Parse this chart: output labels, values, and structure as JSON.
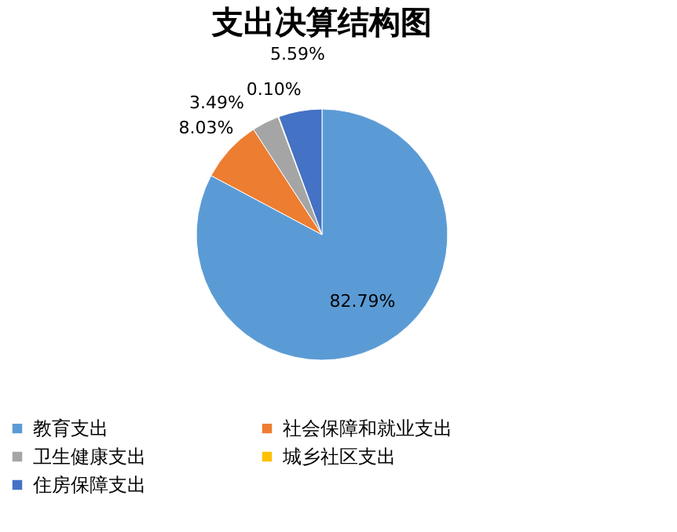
{
  "chart_data": {
    "type": "pie",
    "title": "支出决算结构图",
    "categories": [
      "教育支出",
      "社会保障和就业支出",
      "卫生健康支出",
      "城乡社区支出",
      "住房保障支出"
    ],
    "values": [
      82.79,
      8.03,
      3.49,
      0.1,
      5.59
    ],
    "value_labels": [
      "82.79%",
      "8.03%",
      "3.49%",
      "0.10%",
      "5.59%"
    ],
    "colors": [
      "#5b9bd5",
      "#ed7d31",
      "#a5a5a5",
      "#ffc000",
      "#4472c4"
    ],
    "legend": "bottom"
  }
}
